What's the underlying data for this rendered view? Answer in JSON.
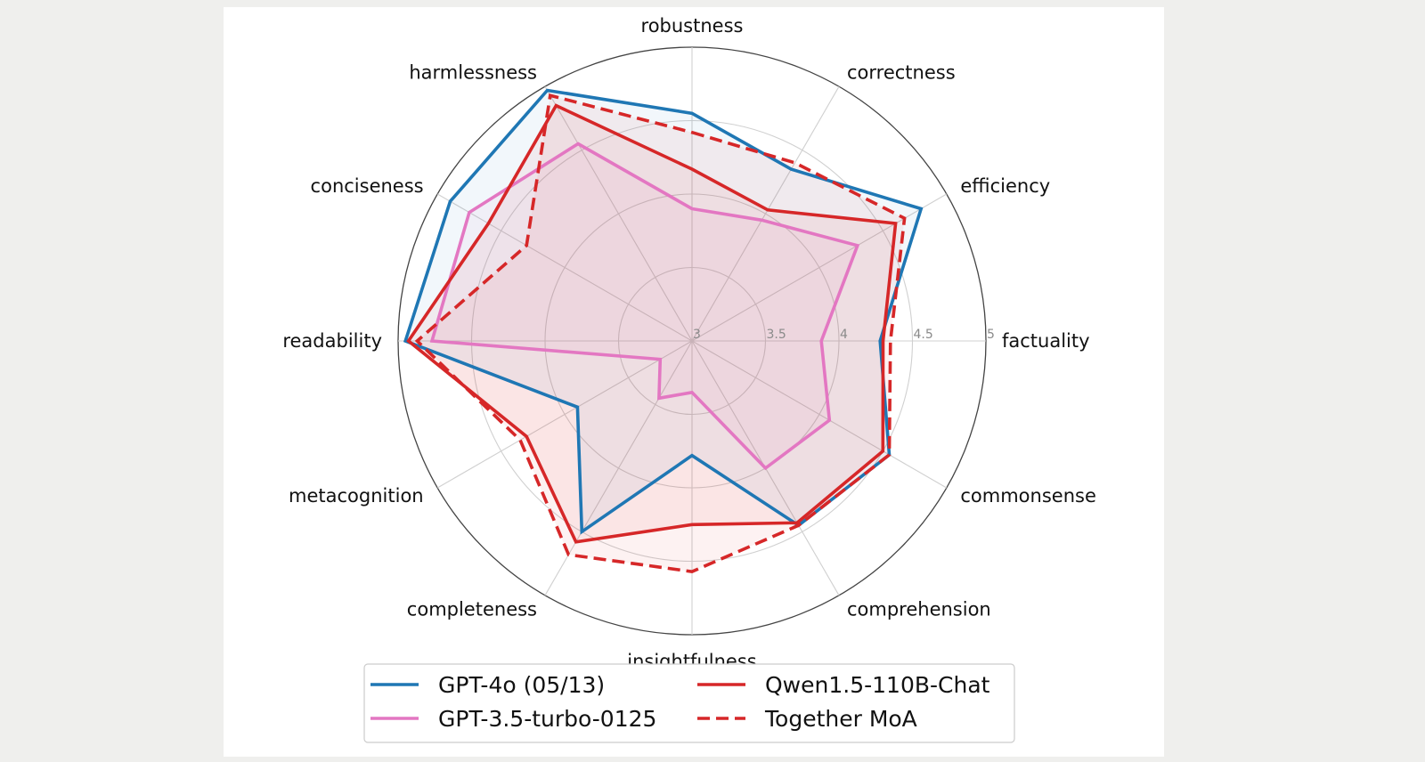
{
  "chart_data": {
    "type": "radar",
    "title": "",
    "axes": [
      "robustness",
      "correctness",
      "efficiency",
      "factuality",
      "commonsense",
      "comprehension",
      "insightfulness",
      "completeness",
      "metacognition",
      "readability",
      "conciseness",
      "harmlessness"
    ],
    "rlim": [
      3,
      5
    ],
    "rticks": [
      "3",
      "3.5",
      "4",
      "4.5",
      "5"
    ],
    "grid": true,
    "legend_position": "bottom",
    "series": [
      {
        "name": "GPT-4o (05/13)",
        "color": "#1f77b4",
        "linestyle": "solid",
        "values": [
          4.55,
          4.35,
          4.8,
          4.28,
          4.55,
          4.45,
          3.78,
          4.5,
          3.9,
          4.95,
          4.9,
          4.97
        ]
      },
      {
        "name": "GPT-3.5-turbo-0125",
        "color": "#e377c2",
        "linestyle": "solid",
        "values": [
          3.9,
          3.95,
          4.3,
          3.88,
          4.08,
          4.0,
          3.35,
          3.45,
          3.25,
          4.77,
          4.75,
          4.55
        ]
      },
      {
        "name": "Qwen1.5-110B-Chat",
        "color": "#d62728",
        "linestyle": "solid",
        "values": [
          4.17,
          4.03,
          4.6,
          4.3,
          4.5,
          4.43,
          4.25,
          4.58,
          4.3,
          4.93,
          4.6,
          4.85
        ]
      },
      {
        "name": "Together MoA",
        "color": "#d62728",
        "linestyle": "dashed",
        "values": [
          4.42,
          4.4,
          4.67,
          4.35,
          4.55,
          4.45,
          4.57,
          4.68,
          4.35,
          4.87,
          4.3,
          4.93
        ]
      }
    ]
  }
}
